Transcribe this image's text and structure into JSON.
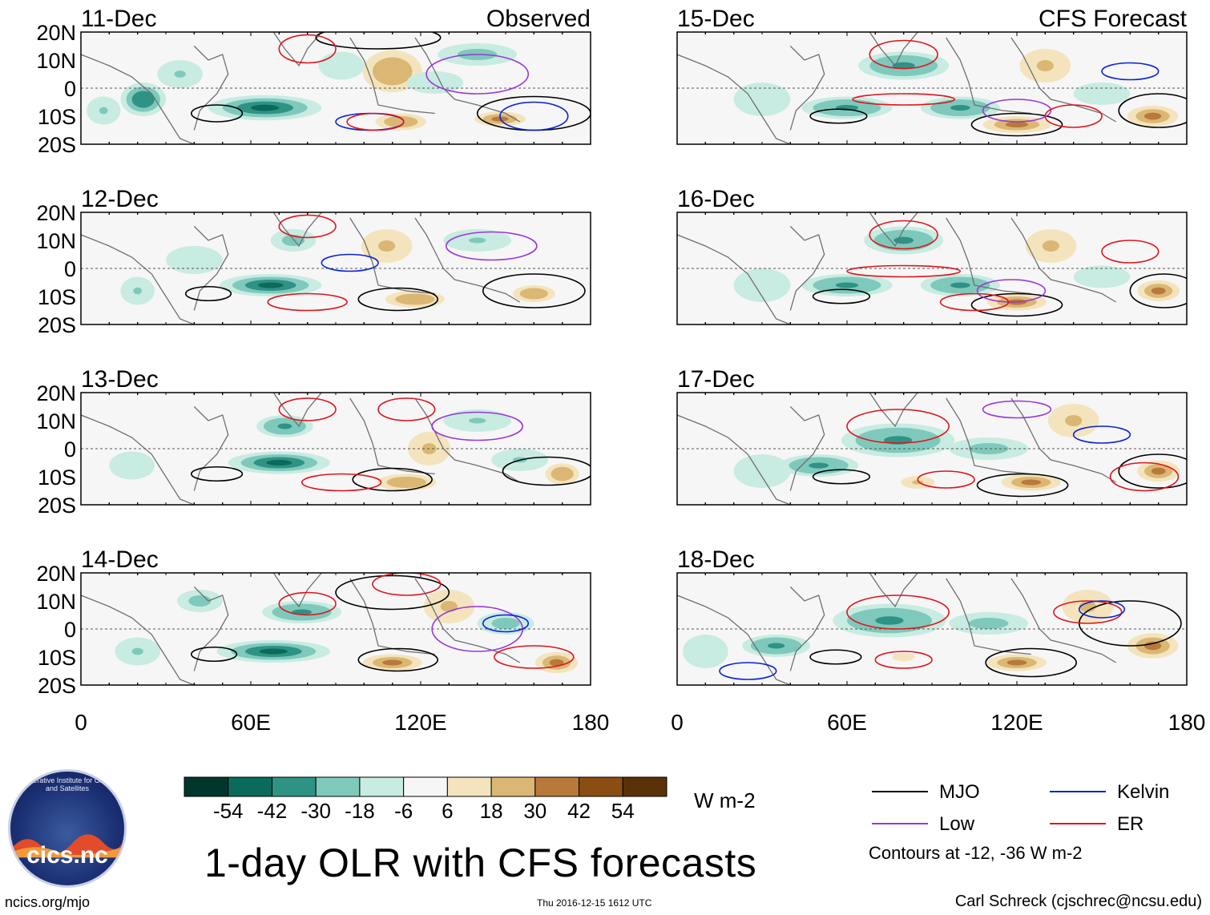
{
  "colors": {
    "mjo": "#000000",
    "kelvin": "#0a22d6",
    "low": "#9a36d8",
    "er": "#e0141c",
    "scale": [
      "#00362c",
      "#0a6a5b",
      "#2e9285",
      "#7ec9bb",
      "#c8ebe2",
      "#f6f6f6",
      "#f3e4bd",
      "#dbb774",
      "#b8793a",
      "#8a4e12",
      "#5a3208"
    ]
  },
  "logo": {
    "ring_text": "Cooperative Institute for Climate and Satellites",
    "name": "cics.nc"
  },
  "footer": {
    "left": "ncics.org/mjo",
    "timestamp": "Thu 2016-12-15 1612 UTC",
    "right": "Carl Schreck (cjschrec@ncsu.edu)"
  },
  "chart_data": {
    "type": "heatmap",
    "title": "1-day OLR with CFS forecasts",
    "units": "W m-2",
    "contour_note": "Contours at -12, -36 W m-2",
    "column_headers": {
      "left": "Observed",
      "right": "CFS Forecast"
    },
    "lon_range": [
      0,
      180
    ],
    "lat_range": [
      -20,
      20
    ],
    "y_ticks": [
      {
        "value": 20,
        "label": "20N"
      },
      {
        "value": 10,
        "label": "10N"
      },
      {
        "value": 0,
        "label": "0"
      },
      {
        "value": -10,
        "label": "10S"
      },
      {
        "value": -20,
        "label": "20S"
      }
    ],
    "x_ticks": [
      {
        "value": 0,
        "label": "0"
      },
      {
        "value": 60,
        "label": "60E"
      },
      {
        "value": 120,
        "label": "120E"
      },
      {
        "value": 180,
        "label": "180"
      }
    ],
    "colorbar": {
      "bins": [
        -60,
        -48,
        -36,
        -24,
        -12,
        0,
        12,
        24,
        36,
        48,
        60
      ],
      "labels": [
        "-54",
        "-42",
        "-30",
        "-18",
        "-6",
        "6",
        "18",
        "30",
        "42",
        "54"
      ]
    },
    "legend": [
      {
        "key": "mjo",
        "label": "MJO"
      },
      {
        "key": "kelvin",
        "label": "Kelvin"
      },
      {
        "key": "low",
        "label": "Low"
      },
      {
        "key": "er",
        "label": "ER"
      }
    ],
    "panels": [
      {
        "date": "11-Dec",
        "source": "Observed",
        "col": 0,
        "row": 0,
        "blobs": [
          [
            65,
            -7,
            -40,
            20,
            4.5
          ],
          [
            22,
            -4,
            -36,
            8,
            6
          ],
          [
            110,
            6,
            32,
            14,
            10
          ],
          [
            113,
            -12,
            34,
            12,
            4
          ],
          [
            148,
            -11,
            40,
            12,
            3.5
          ],
          [
            140,
            12,
            -18,
            14,
            4
          ],
          [
            35,
            5,
            -14,
            8,
            5
          ],
          [
            8,
            -8,
            -14,
            6,
            5
          ],
          [
            125,
            2,
            -12,
            10,
            4
          ],
          [
            92,
            8,
            -10,
            8,
            5
          ]
        ],
        "contours": [
          {
            "kind": "mjo",
            "lon": 48,
            "lat": -9,
            "rx": 9,
            "ry": 3
          },
          {
            "kind": "mjo",
            "lon": 105,
            "lat": 18,
            "rx": 22,
            "ry": 4
          },
          {
            "kind": "mjo",
            "lon": 160,
            "lat": -9,
            "rx": 20,
            "ry": 6
          },
          {
            "kind": "kelvin",
            "lon": 102,
            "lat": -12,
            "rx": 12,
            "ry": 3
          },
          {
            "kind": "kelvin",
            "lon": 160,
            "lat": -10,
            "rx": 12,
            "ry": 5
          },
          {
            "kind": "low",
            "lon": 140,
            "lat": 5,
            "rx": 18,
            "ry": 7
          },
          {
            "kind": "er",
            "lon": 80,
            "lat": 14,
            "rx": 10,
            "ry": 5
          },
          {
            "kind": "er",
            "lon": 104,
            "lat": -12,
            "rx": 10,
            "ry": 3
          }
        ]
      },
      {
        "date": "12-Dec",
        "source": "Observed",
        "col": 0,
        "row": 1,
        "blobs": [
          [
            67,
            -6,
            -42,
            18,
            4
          ],
          [
            118,
            -11,
            34,
            14,
            4
          ],
          [
            160,
            -9,
            34,
            10,
            4
          ],
          [
            75,
            10,
            -18,
            8,
            4
          ],
          [
            140,
            10,
            -16,
            12,
            4
          ],
          [
            20,
            -8,
            -14,
            6,
            5
          ],
          [
            108,
            8,
            30,
            12,
            8
          ],
          [
            40,
            3,
            -12,
            10,
            5
          ]
        ],
        "contours": [
          {
            "kind": "mjo",
            "lon": 45,
            "lat": -9,
            "rx": 8,
            "ry": 2.5
          },
          {
            "kind": "mjo",
            "lon": 112,
            "lat": -11,
            "rx": 14,
            "ry": 4
          },
          {
            "kind": "mjo",
            "lon": 160,
            "lat": -8,
            "rx": 18,
            "ry": 6
          },
          {
            "kind": "low",
            "lon": 145,
            "lat": 8,
            "rx": 16,
            "ry": 5
          },
          {
            "kind": "er",
            "lon": 80,
            "lat": 15,
            "rx": 10,
            "ry": 4
          },
          {
            "kind": "er",
            "lon": 80,
            "lat": -12,
            "rx": 14,
            "ry": 3
          },
          {
            "kind": "kelvin",
            "lon": 95,
            "lat": 2,
            "rx": 10,
            "ry": 3
          }
        ]
      },
      {
        "date": "13-Dec",
        "source": "Observed",
        "col": 0,
        "row": 2,
        "blobs": [
          [
            70,
            -5,
            -40,
            18,
            4
          ],
          [
            72,
            8,
            -26,
            10,
            4
          ],
          [
            115,
            -12,
            34,
            14,
            4
          ],
          [
            170,
            -9,
            32,
            8,
            5
          ],
          [
            140,
            10,
            -16,
            12,
            4
          ],
          [
            123,
            0,
            28,
            10,
            8
          ],
          [
            18,
            -6,
            -12,
            8,
            5
          ],
          [
            155,
            -4,
            -14,
            10,
            4
          ]
        ],
        "contours": [
          {
            "kind": "mjo",
            "lon": 48,
            "lat": -9,
            "rx": 9,
            "ry": 2.5
          },
          {
            "kind": "mjo",
            "lon": 110,
            "lat": -11,
            "rx": 14,
            "ry": 4
          },
          {
            "kind": "mjo",
            "lon": 165,
            "lat": -8,
            "rx": 16,
            "ry": 5
          },
          {
            "kind": "low",
            "lon": 140,
            "lat": 8,
            "rx": 16,
            "ry": 5
          },
          {
            "kind": "er",
            "lon": 80,
            "lat": 14,
            "rx": 10,
            "ry": 4
          },
          {
            "kind": "er",
            "lon": 115,
            "lat": 14,
            "rx": 10,
            "ry": 4
          },
          {
            "kind": "er",
            "lon": 92,
            "lat": -12,
            "rx": 14,
            "ry": 3
          }
        ]
      },
      {
        "date": "14-Dec",
        "source": "Observed",
        "col": 0,
        "row": 3,
        "blobs": [
          [
            68,
            -8,
            -42,
            20,
            4
          ],
          [
            78,
            6,
            -30,
            14,
            4
          ],
          [
            110,
            -12,
            36,
            14,
            4
          ],
          [
            168,
            -12,
            36,
            10,
            5
          ],
          [
            130,
            8,
            24,
            12,
            8
          ],
          [
            150,
            2,
            -18,
            10,
            4
          ],
          [
            20,
            -8,
            -14,
            8,
            5
          ],
          [
            42,
            10,
            -18,
            8,
            4
          ]
        ],
        "contours": [
          {
            "kind": "mjo",
            "lon": 47,
            "lat": -9,
            "rx": 8,
            "ry": 2.5
          },
          {
            "kind": "mjo",
            "lon": 112,
            "lat": -11,
            "rx": 14,
            "ry": 4
          },
          {
            "kind": "mjo",
            "lon": 110,
            "lat": 13,
            "rx": 20,
            "ry": 6
          },
          {
            "kind": "low",
            "lon": 140,
            "lat": 0,
            "rx": 16,
            "ry": 8
          },
          {
            "kind": "er",
            "lon": 80,
            "lat": 9,
            "rx": 10,
            "ry": 4
          },
          {
            "kind": "er",
            "lon": 115,
            "lat": 16,
            "rx": 12,
            "ry": 4
          },
          {
            "kind": "er",
            "lon": 160,
            "lat": -10,
            "rx": 14,
            "ry": 4
          },
          {
            "kind": "kelvin",
            "lon": 150,
            "lat": 2,
            "rx": 8,
            "ry": 3
          }
        ]
      },
      {
        "date": "15-Dec",
        "source": "CFS Forecast",
        "col": 1,
        "row": 0,
        "blobs": [
          [
            80,
            8,
            -30,
            16,
            5
          ],
          [
            60,
            -7,
            -32,
            16,
            4
          ],
          [
            100,
            -7,
            -30,
            14,
            4
          ],
          [
            120,
            -13,
            38,
            16,
            4
          ],
          [
            168,
            -10,
            40,
            12,
            5
          ],
          [
            130,
            8,
            28,
            12,
            8
          ],
          [
            30,
            -4,
            -12,
            10,
            6
          ],
          [
            150,
            -2,
            -12,
            10,
            4
          ]
        ],
        "contours": [
          {
            "kind": "mjo",
            "lon": 57,
            "lat": -10,
            "rx": 10,
            "ry": 2.5
          },
          {
            "kind": "mjo",
            "lon": 120,
            "lat": -13,
            "rx": 16,
            "ry": 4
          },
          {
            "kind": "mjo",
            "lon": 170,
            "lat": -8,
            "rx": 14,
            "ry": 6
          },
          {
            "kind": "low",
            "lon": 120,
            "lat": -8,
            "rx": 12,
            "ry": 4
          },
          {
            "kind": "er",
            "lon": 80,
            "lat": 12,
            "rx": 12,
            "ry": 5
          },
          {
            "kind": "er",
            "lon": 80,
            "lat": -4,
            "rx": 18,
            "ry": 2
          },
          {
            "kind": "er",
            "lon": 140,
            "lat": -10,
            "rx": 10,
            "ry": 4
          },
          {
            "kind": "kelvin",
            "lon": 160,
            "lat": 6,
            "rx": 10,
            "ry": 3
          }
        ]
      },
      {
        "date": "16-Dec",
        "source": "CFS Forecast",
        "col": 1,
        "row": 1,
        "blobs": [
          [
            80,
            10,
            -30,
            14,
            5
          ],
          [
            60,
            -6,
            -30,
            16,
            4
          ],
          [
            100,
            -6,
            -28,
            14,
            4
          ],
          [
            120,
            -12,
            36,
            14,
            4
          ],
          [
            170,
            -8,
            38,
            10,
            5
          ],
          [
            132,
            8,
            26,
            12,
            8
          ],
          [
            30,
            -6,
            -12,
            10,
            6
          ],
          [
            150,
            -3,
            -12,
            10,
            4
          ]
        ],
        "contours": [
          {
            "kind": "mjo",
            "lon": 58,
            "lat": -10,
            "rx": 10,
            "ry": 2.5
          },
          {
            "kind": "mjo",
            "lon": 120,
            "lat": -13,
            "rx": 16,
            "ry": 4
          },
          {
            "kind": "mjo",
            "lon": 172,
            "lat": -8,
            "rx": 12,
            "ry": 6
          },
          {
            "kind": "low",
            "lon": 118,
            "lat": -8,
            "rx": 12,
            "ry": 4
          },
          {
            "kind": "er",
            "lon": 80,
            "lat": 12,
            "rx": 12,
            "ry": 5
          },
          {
            "kind": "er",
            "lon": 80,
            "lat": -1,
            "rx": 20,
            "ry": 2
          },
          {
            "kind": "er",
            "lon": 105,
            "lat": -12,
            "rx": 12,
            "ry": 3
          },
          {
            "kind": "er",
            "lon": 160,
            "lat": 6,
            "rx": 10,
            "ry": 4
          }
        ]
      },
      {
        "date": "17-Dec",
        "source": "CFS Forecast",
        "col": 1,
        "row": 2,
        "blobs": [
          [
            78,
            3,
            -30,
            20,
            6
          ],
          [
            50,
            -6,
            -26,
            14,
            4
          ],
          [
            110,
            0,
            -24,
            14,
            4
          ],
          [
            125,
            -12,
            38,
            14,
            4
          ],
          [
            170,
            -8,
            38,
            10,
            5
          ],
          [
            140,
            10,
            24,
            12,
            8
          ],
          [
            30,
            -8,
            -12,
            10,
            6
          ],
          [
            85,
            -12,
            26,
            8,
            3
          ]
        ],
        "contours": [
          {
            "kind": "mjo",
            "lon": 58,
            "lat": -10,
            "rx": 10,
            "ry": 2.5
          },
          {
            "kind": "mjo",
            "lon": 122,
            "lat": -13,
            "rx": 16,
            "ry": 4
          },
          {
            "kind": "mjo",
            "lon": 170,
            "lat": -8,
            "rx": 14,
            "ry": 6
          },
          {
            "kind": "er",
            "lon": 78,
            "lat": 8,
            "rx": 18,
            "ry": 6
          },
          {
            "kind": "er",
            "lon": 95,
            "lat": -11,
            "rx": 10,
            "ry": 3
          },
          {
            "kind": "er",
            "lon": 165,
            "lat": -10,
            "rx": 12,
            "ry": 5
          },
          {
            "kind": "kelvin",
            "lon": 150,
            "lat": 5,
            "rx": 10,
            "ry": 3
          },
          {
            "kind": "low",
            "lon": 120,
            "lat": 14,
            "rx": 12,
            "ry": 3
          }
        ]
      },
      {
        "date": "18-Dec",
        "source": "CFS Forecast",
        "col": 1,
        "row": 3,
        "blobs": [
          [
            75,
            3,
            -30,
            20,
            6
          ],
          [
            35,
            -6,
            -26,
            12,
            4
          ],
          [
            110,
            2,
            -24,
            14,
            4
          ],
          [
            120,
            -12,
            38,
            14,
            4
          ],
          [
            168,
            -6,
            38,
            12,
            6
          ],
          [
            145,
            8,
            24,
            12,
            8
          ],
          [
            10,
            -8,
            -12,
            8,
            6
          ],
          [
            80,
            -10,
            22,
            8,
            3
          ]
        ],
        "contours": [
          {
            "kind": "mjo",
            "lon": 56,
            "lat": -10,
            "rx": 9,
            "ry": 2.5
          },
          {
            "kind": "mjo",
            "lon": 125,
            "lat": -12,
            "rx": 16,
            "ry": 5
          },
          {
            "kind": "mjo",
            "lon": 160,
            "lat": 2,
            "rx": 18,
            "ry": 8
          },
          {
            "kind": "er",
            "lon": 78,
            "lat": 6,
            "rx": 18,
            "ry": 6
          },
          {
            "kind": "er",
            "lon": 80,
            "lat": -11,
            "rx": 10,
            "ry": 3
          },
          {
            "kind": "er",
            "lon": 145,
            "lat": 6,
            "rx": 12,
            "ry": 4
          },
          {
            "kind": "kelvin",
            "lon": 150,
            "lat": 7,
            "rx": 8,
            "ry": 3
          },
          {
            "kind": "kelvin",
            "lon": 25,
            "lat": -15,
            "rx": 10,
            "ry": 3
          }
        ]
      }
    ]
  }
}
